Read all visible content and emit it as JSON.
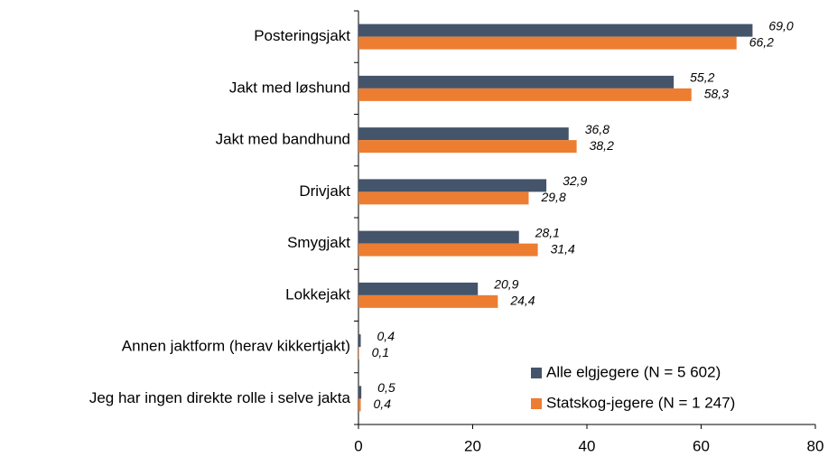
{
  "chart_data": {
    "type": "bar",
    "orientation": "horizontal",
    "categories": [
      "Posteringsjakt",
      "Jakt med løshund",
      "Jakt med bandhund",
      "Drivjakt",
      "Smygjakt",
      "Lokkejakt",
      "Annen jaktform (herav kikkertjakt)",
      "Jeg har ingen direkte rolle i selve jakta"
    ],
    "series": [
      {
        "name": "Alle elgjegere (N = 5 602)",
        "color": "#44546a",
        "values": [
          69.0,
          55.2,
          36.8,
          32.9,
          28.1,
          20.9,
          0.4,
          0.5
        ],
        "value_labels": [
          "69,0",
          "55,2",
          "36,8",
          "32,9",
          "28,1",
          "20,9",
          "0,4",
          "0,5"
        ]
      },
      {
        "name": "Statskog-jegere (N = 1 247)",
        "color": "#ed7d31",
        "values": [
          66.2,
          58.3,
          38.2,
          29.8,
          31.4,
          24.4,
          0.1,
          0.4
        ],
        "value_labels": [
          "66,2",
          "58,3",
          "38,2",
          "29,8",
          "31,4",
          "24,4",
          "0,1",
          "0,4"
        ]
      }
    ],
    "xlim": [
      0,
      80
    ],
    "xticks": [
      0,
      20,
      40,
      60,
      80
    ],
    "legend": "lower right"
  }
}
